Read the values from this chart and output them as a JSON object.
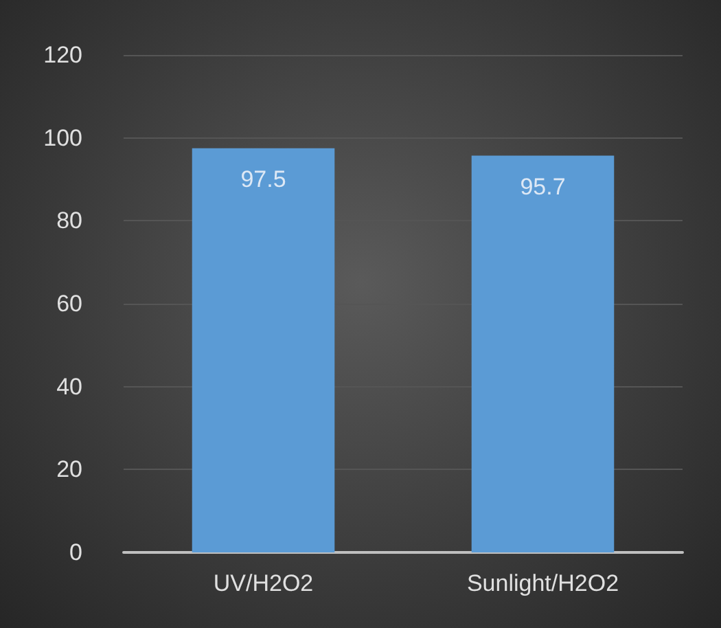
{
  "chart_data": {
    "type": "bar",
    "categories": [
      "UV/H2O2",
      "Sunlight/H2O2"
    ],
    "values": [
      97.5,
      95.7
    ],
    "color": "#5b9bd5",
    "ylim": [
      0,
      120
    ],
    "yticks": [
      0,
      20,
      40,
      60,
      80,
      100,
      120
    ],
    "grid": "y",
    "data_labels": true
  }
}
